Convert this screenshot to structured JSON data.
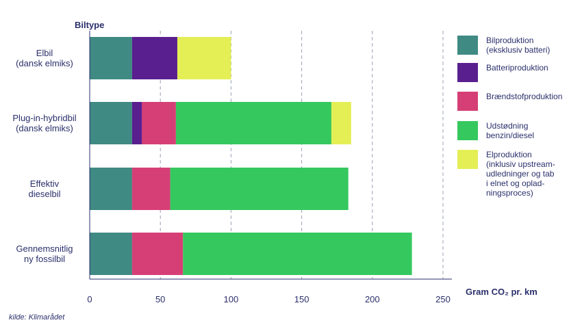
{
  "chart_data": {
    "type": "bar",
    "orientation": "horizontal",
    "stacked": true,
    "ylabel": "Biltype",
    "xlabel": "Gram CO₂ pr. km",
    "xlim": [
      0,
      250
    ],
    "xticks": [
      0,
      50,
      100,
      150,
      200,
      250
    ],
    "grid": "vertical dashed",
    "legend_position": "right",
    "categories": [
      "Elbil\n(dansk elmiks)",
      "Plug-in-hybridbil\n(dansk elmiks)",
      "Effektiv\ndieselbil",
      "Gennemsnitlig\nny fossilbil"
    ],
    "series": [
      {
        "name": "Bilproduktion\n(eksklusiv batteri)",
        "values": [
          30,
          30,
          30,
          30
        ],
        "color": "#3f8a83"
      },
      {
        "name": "Batteriproduktion",
        "values": [
          32,
          7,
          0,
          0
        ],
        "color": "#5a1f8f"
      },
      {
        "name": "Brændstofproduktion",
        "values": [
          0,
          24,
          27,
          36
        ],
        "color": "#d63f75"
      },
      {
        "name": "Udstødning\nbenzin/diesel",
        "values": [
          0,
          110,
          126,
          162
        ],
        "color": "#35c85f"
      },
      {
        "name": "Elproduktion\n(inklusiv upstream-\nudledninger og tab\ni elnet og oplad-\nningsproces)",
        "values": [
          38,
          14,
          0,
          0
        ],
        "color": "#e4ee55"
      }
    ]
  },
  "source": "kilde: Klimarådet"
}
